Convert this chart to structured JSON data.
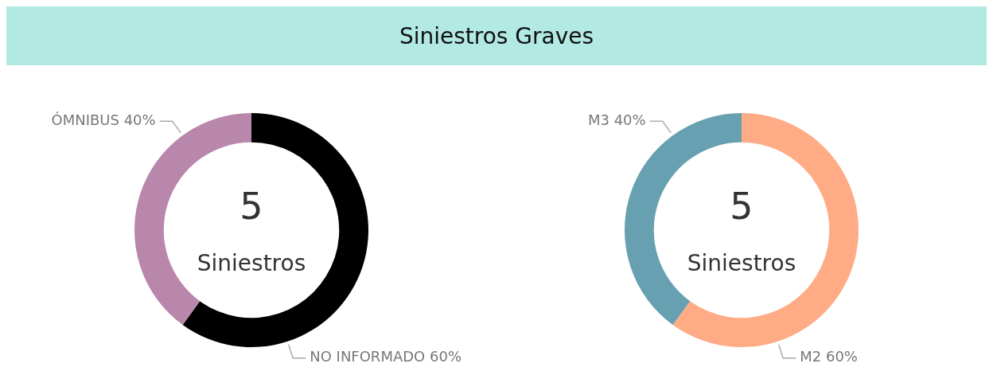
{
  "chart_data": [
    {
      "type": "donut",
      "title": "Siniestros Graves",
      "categories": [
        "NO INFORMADO",
        "ÓMNIBUS"
      ],
      "values": [
        60,
        40
      ],
      "value_labels": [
        "60%",
        "40%"
      ],
      "colors": [
        "#000000",
        "#b887ab"
      ],
      "annotations": [
        "5",
        "Siniestros"
      ],
      "legend": false
    },
    {
      "type": "donut",
      "categories": [
        "M2",
        "M3"
      ],
      "values": [
        60,
        40
      ],
      "value_labels": [
        "60%",
        "40%"
      ],
      "colors": [
        "#ffab86",
        "#67a0b1"
      ],
      "annotations": [
        "5",
        "Siniestros"
      ],
      "legend": false
    }
  ]
}
